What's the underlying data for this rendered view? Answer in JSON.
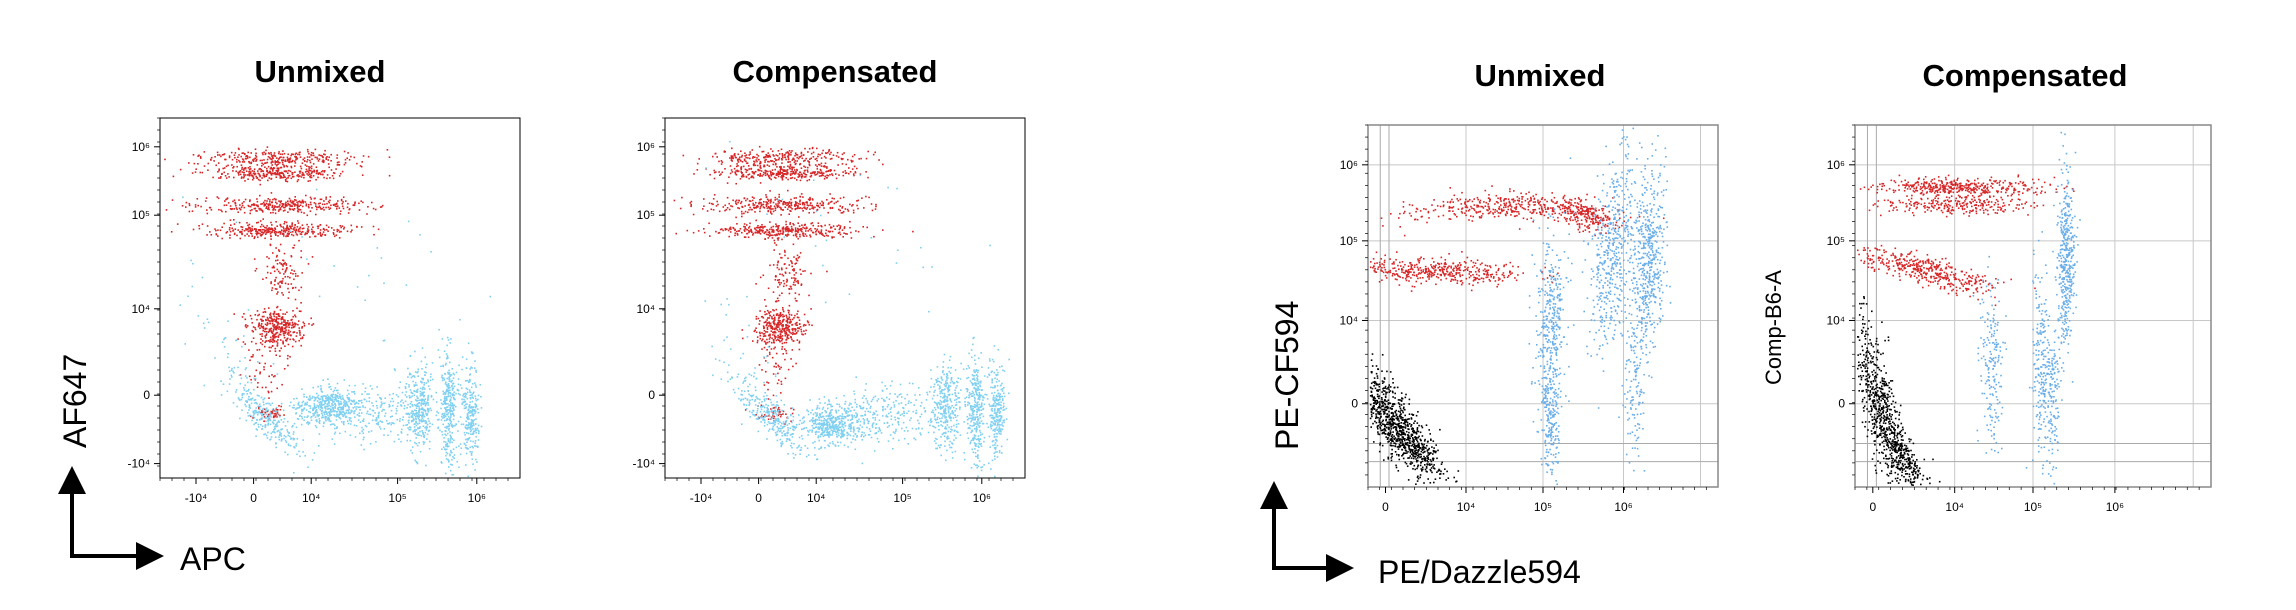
{
  "figure": {
    "left_axis_x_label": "APC",
    "left_axis_y_label": "AF647",
    "right_axis_x_label": "PE/Dazzle594",
    "right_axis_y_label": "PE-CF594",
    "right_panel2_y_label": "Comp-B6-A"
  },
  "colors": {
    "red_population": "#d62728",
    "blue_population": "#6aaee8",
    "light_blue_population": "#7fd0f0",
    "black_population": "#000000",
    "grid": "#c8c8c8"
  },
  "chart_data": [
    {
      "type": "scatter",
      "title": "Unmixed",
      "xlabel": "APC",
      "ylabel": "AF647",
      "x_scale": "biexponential",
      "y_scale": "biexponential",
      "x_ticks": [
        "-10⁴",
        "0",
        "10⁴",
        "10⁵",
        "10⁶"
      ],
      "y_ticks": [
        "10⁶",
        "10⁵",
        "10⁴",
        "0",
        "-10⁴"
      ],
      "grid": false,
      "series": [
        {
          "color": "#d62728",
          "clusters": [
            {
              "x": 5000,
              "y": 600000
            },
            {
              "x": 5000,
              "y": 330000
            },
            {
              "x": 5000,
              "y": 200000
            },
            {
              "x": 1500,
              "y": 30000
            }
          ]
        },
        {
          "color": "#7fd0f0",
          "clusters": [
            {
              "x": 20000,
              "y": 0
            },
            {
              "x": 100000,
              "y": 0
            },
            {
              "x": 160000,
              "y": 0
            },
            {
              "x": 250000,
              "y": 0
            }
          ]
        }
      ]
    },
    {
      "type": "scatter",
      "title": "Compensated",
      "xlabel": "",
      "ylabel": "",
      "x_scale": "biexponential",
      "y_scale": "biexponential",
      "x_ticks": [
        "-10⁴",
        "0",
        "10⁴",
        "10⁵",
        "10⁶"
      ],
      "y_ticks": [
        "10⁶",
        "10⁵",
        "10⁴",
        "0",
        "-10⁴"
      ],
      "grid": false,
      "series": [
        {
          "color": "#d62728",
          "clusters": [
            {
              "x": 5000,
              "y": 600000
            },
            {
              "x": 5000,
              "y": 330000
            },
            {
              "x": 5000,
              "y": 200000
            },
            {
              "x": 1500,
              "y": 30000
            }
          ]
        },
        {
          "color": "#7fd0f0",
          "clusters": [
            {
              "x": 20000,
              "y": 0
            },
            {
              "x": 100000,
              "y": 0
            },
            {
              "x": 200000,
              "y": 0
            },
            {
              "x": 350000,
              "y": 0
            }
          ]
        }
      ]
    },
    {
      "type": "scatter",
      "title": "Unmixed",
      "xlabel": "PE/Dazzle594",
      "ylabel": "PE-CF594",
      "x_scale": "biexponential",
      "y_scale": "biexponential",
      "x_ticks": [
        "0",
        "10⁴",
        "10⁵",
        "10⁶"
      ],
      "y_ticks": [
        "10⁶",
        "10⁵",
        "10⁴",
        "0"
      ],
      "grid": true,
      "series": [
        {
          "color": "#d62728",
          "clusters": [
            {
              "x": 20000,
              "y": 300000
            },
            {
              "x": 3000,
              "y": 35000
            }
          ]
        },
        {
          "color": "#6aaee8",
          "clusters": [
            {
              "x": 50000,
              "y": 10000
            },
            {
              "x": 300000,
              "y": 60000
            },
            {
              "x": 500000,
              "y": 60000
            }
          ]
        },
        {
          "color": "#000000",
          "clusters": [
            {
              "x": 0,
              "y": 500
            }
          ]
        }
      ]
    },
    {
      "type": "scatter",
      "title": "Compensated",
      "xlabel": "",
      "ylabel": "Comp-B6-A",
      "x_scale": "biexponential",
      "y_scale": "biexponential",
      "x_ticks": [
        "0",
        "10⁴",
        "10⁵",
        "10⁶"
      ],
      "y_ticks": [
        "10⁶",
        "10⁵",
        "10⁴",
        "0"
      ],
      "grid": true,
      "series": [
        {
          "color": "#d62728",
          "clusters": [
            {
              "x": 10000,
              "y": 300000
            },
            {
              "x": 3000,
              "y": 35000
            }
          ]
        },
        {
          "color": "#6aaee8",
          "clusters": [
            {
              "x": 10000,
              "y": 5000
            },
            {
              "x": 100000,
              "y": 40000
            },
            {
              "x": 150000,
              "y": 40000
            }
          ]
        },
        {
          "color": "#000000",
          "clusters": [
            {
              "x": 0,
              "y": 500
            }
          ]
        }
      ]
    }
  ]
}
